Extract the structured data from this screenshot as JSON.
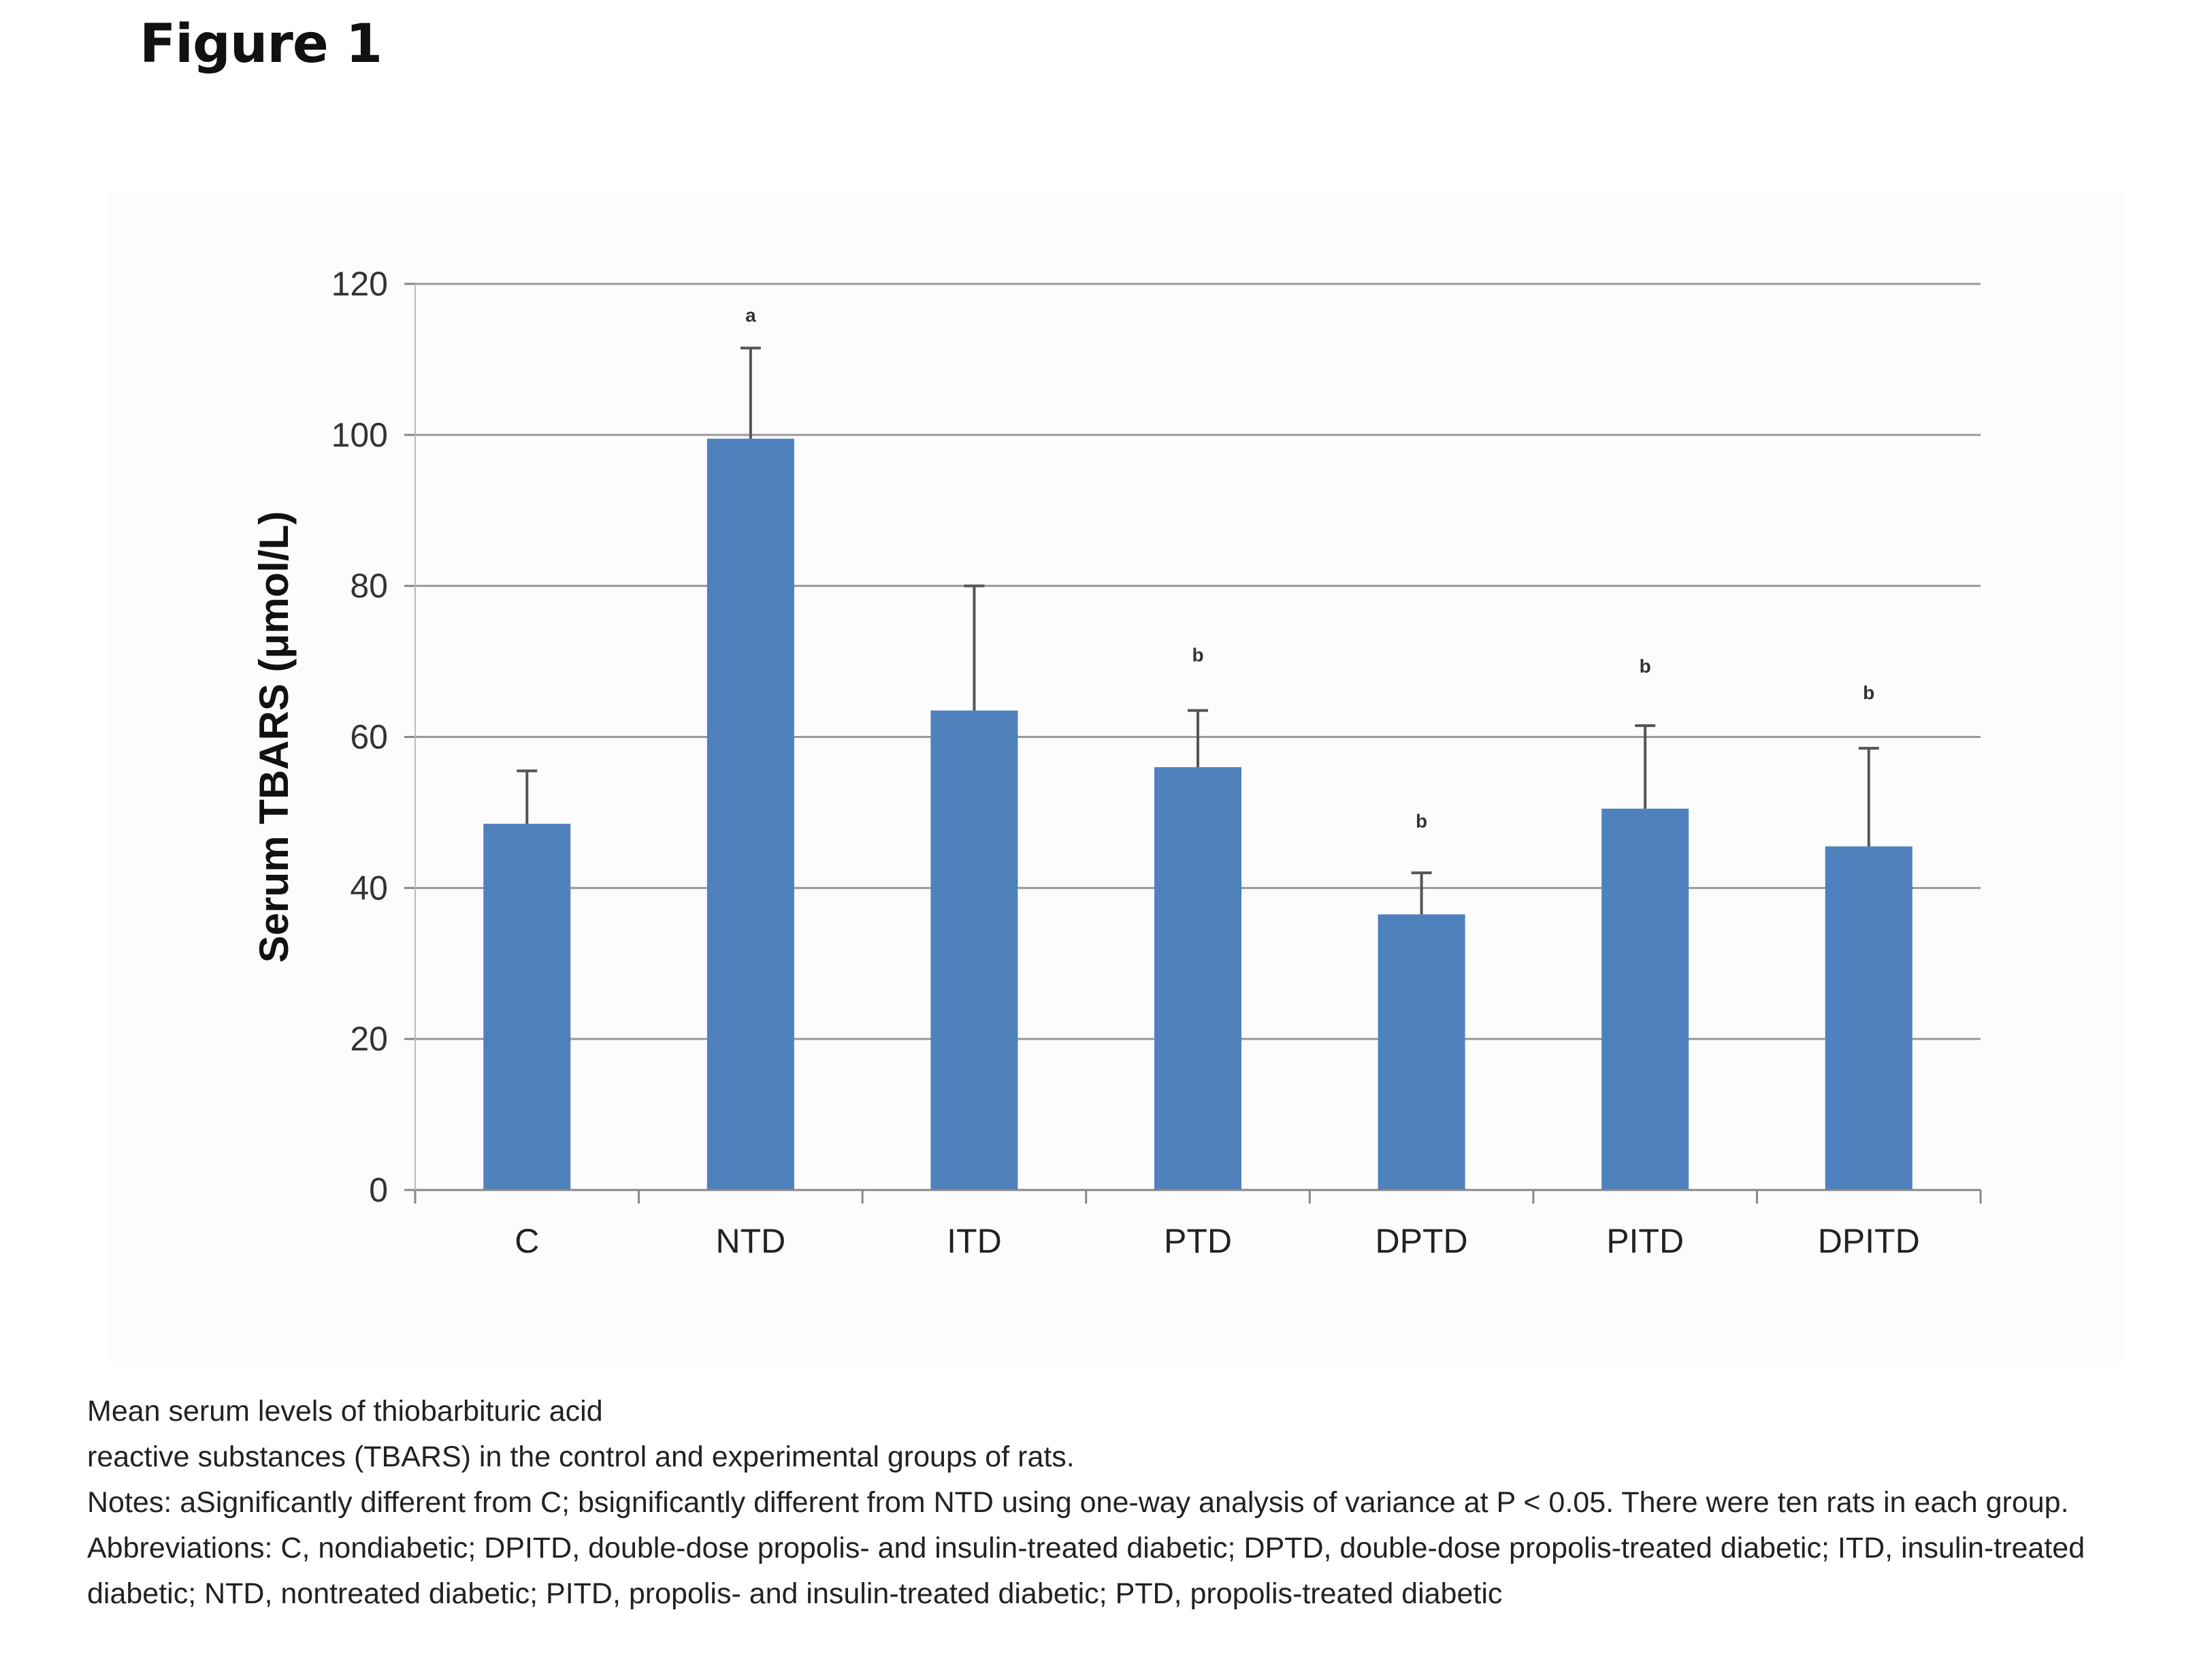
{
  "figure": {
    "title": "Figure 1"
  },
  "chart_data": {
    "type": "bar",
    "title": "",
    "xlabel": "",
    "ylabel": "Serum TBARS (μmol/L)",
    "ylim": [
      0,
      120
    ],
    "yticks": [
      0,
      20,
      40,
      60,
      80,
      100,
      120
    ],
    "grid": true,
    "bar_color": "#4f81bd",
    "categories": [
      "C",
      "NTD",
      "ITD",
      "PTD",
      "DPTD",
      "PITD",
      "DPITD"
    ],
    "values": [
      48.5,
      99.5,
      63.5,
      56,
      36.5,
      50.5,
      45.5
    ],
    "error_upper": [
      55.5,
      111.5,
      80,
      63.5,
      42,
      61.5,
      58.5
    ],
    "annotations": [
      "",
      "a",
      "",
      "b",
      "b",
      "b",
      "b"
    ],
    "annotation_positions": [
      0,
      115,
      0,
      70,
      48,
      68.5,
      65
    ]
  },
  "caption": {
    "line1": "Mean serum levels of thiobarbituric acid",
    "line2": "reactive substances (TBARS) in the control and experimental groups of rats.",
    "notes": "Notes: aSignificantly different from C; bsignificantly different from NTD using one-way analysis of variance at P < 0.05. There were ten rats in each group.",
    "abbreviations": "Abbreviations: C, nondiabetic; DPITD, double-dose propolis- and insulin-treated diabetic; DPTD, double-dose propolis-treated diabetic; ITD, insulin-treated diabetic; NTD, nontreated diabetic; PITD, propolis- and insulin-treated diabetic; PTD, propolis-treated diabetic"
  }
}
